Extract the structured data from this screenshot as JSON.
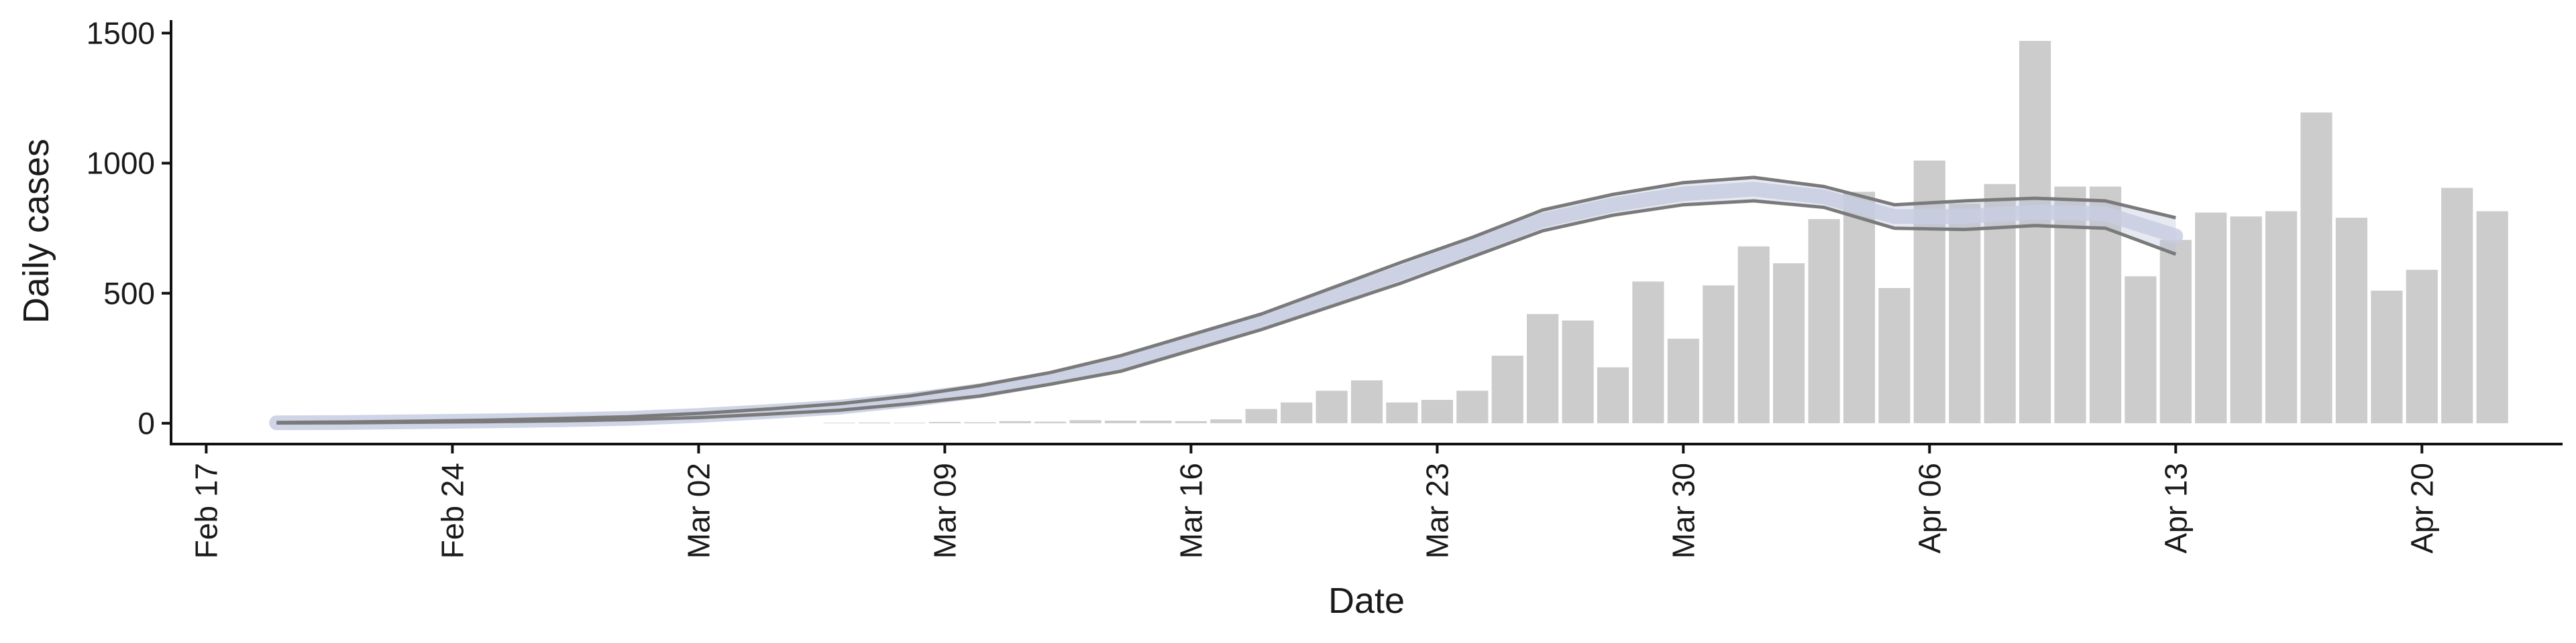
{
  "chart_data": {
    "type": "bar",
    "xlabel": "Date",
    "ylabel": "Daily cases",
    "x_start": "2020-02-16",
    "x_end": "2020-04-24",
    "ylim": [
      -80,
      1550
    ],
    "y_ticks": [
      0,
      500,
      1000,
      1500
    ],
    "x_tick_labels": [
      {
        "date": "2020-02-17",
        "label": "Feb 17"
      },
      {
        "date": "2020-02-24",
        "label": "Feb 24"
      },
      {
        "date": "2020-03-02",
        "label": "Mar 02"
      },
      {
        "date": "2020-03-09",
        "label": "Mar 09"
      },
      {
        "date": "2020-03-16",
        "label": "Mar 16"
      },
      {
        "date": "2020-03-23",
        "label": "Mar 23"
      },
      {
        "date": "2020-03-30",
        "label": "Mar 30"
      },
      {
        "date": "2020-04-06",
        "label": "Apr 06"
      },
      {
        "date": "2020-04-13",
        "label": "Apr 13"
      },
      {
        "date": "2020-04-20",
        "label": "Apr 20"
      }
    ],
    "grid": false,
    "legend": "none",
    "colors": {
      "bars": "#cccccc",
      "bounds": "#7a7a7a",
      "ribbon": "#b6bfd8",
      "center": "#c7cee2"
    },
    "daily_cases": {
      "x": [
        "2020-03-06",
        "2020-03-07",
        "2020-03-08",
        "2020-03-09",
        "2020-03-10",
        "2020-03-11",
        "2020-03-12",
        "2020-03-13",
        "2020-03-14",
        "2020-03-15",
        "2020-03-16",
        "2020-03-17",
        "2020-03-18",
        "2020-03-19",
        "2020-03-20",
        "2020-03-21",
        "2020-03-22",
        "2020-03-23",
        "2020-03-24",
        "2020-03-25",
        "2020-03-26",
        "2020-03-27",
        "2020-03-28",
        "2020-03-29",
        "2020-03-30",
        "2020-03-31",
        "2020-04-01",
        "2020-04-02",
        "2020-04-03",
        "2020-04-04",
        "2020-04-05",
        "2020-04-06",
        "2020-04-07",
        "2020-04-08",
        "2020-04-09",
        "2020-04-10",
        "2020-04-11",
        "2020-04-12",
        "2020-04-13",
        "2020-04-14",
        "2020-04-15",
        "2020-04-16",
        "2020-04-17",
        "2020-04-18",
        "2020-04-19",
        "2020-04-20",
        "2020-04-21",
        "2020-04-22"
      ],
      "values": [
        2,
        3,
        2,
        5,
        4,
        8,
        6,
        12,
        10,
        10,
        8,
        15,
        55,
        80,
        125,
        165,
        80,
        90,
        125,
        260,
        420,
        395,
        215,
        545,
        325,
        530,
        680,
        615,
        785,
        890,
        520,
        1010,
        845,
        920,
        1470,
        910,
        910,
        565,
        705,
        810,
        795,
        815,
        1195,
        790,
        510,
        590,
        905,
        815
      ]
    },
    "estimate": {
      "x": [
        "2020-02-19",
        "2020-02-21",
        "2020-02-23",
        "2020-02-25",
        "2020-02-27",
        "2020-02-29",
        "2020-03-02",
        "2020-03-04",
        "2020-03-06",
        "2020-03-08",
        "2020-03-10",
        "2020-03-12",
        "2020-03-14",
        "2020-03-16",
        "2020-03-18",
        "2020-03-20",
        "2020-03-22",
        "2020-03-24",
        "2020-03-26",
        "2020-03-28",
        "2020-03-30",
        "2020-04-01",
        "2020-04-03",
        "2020-04-05",
        "2020-04-07",
        "2020-04-09",
        "2020-04-11",
        "2020-04-13"
      ],
      "upper": [
        3,
        5,
        8,
        12,
        18,
        25,
        38,
        55,
        75,
        105,
        145,
        195,
        260,
        340,
        420,
        520,
        620,
        715,
        820,
        880,
        925,
        945,
        910,
        840,
        855,
        865,
        855,
        790
      ],
      "lower": [
        1,
        2,
        4,
        6,
        9,
        14,
        22,
        35,
        50,
        75,
        105,
        150,
        200,
        280,
        360,
        450,
        540,
        640,
        740,
        800,
        840,
        855,
        830,
        750,
        745,
        760,
        750,
        650
      ],
      "center": [
        2,
        3,
        6,
        9,
        13,
        19,
        30,
        45,
        62,
        90,
        125,
        172,
        230,
        310,
        390,
        485,
        580,
        678,
        780,
        840,
        882,
        900,
        870,
        795,
        795,
        812,
        805,
        720
      ]
    }
  }
}
